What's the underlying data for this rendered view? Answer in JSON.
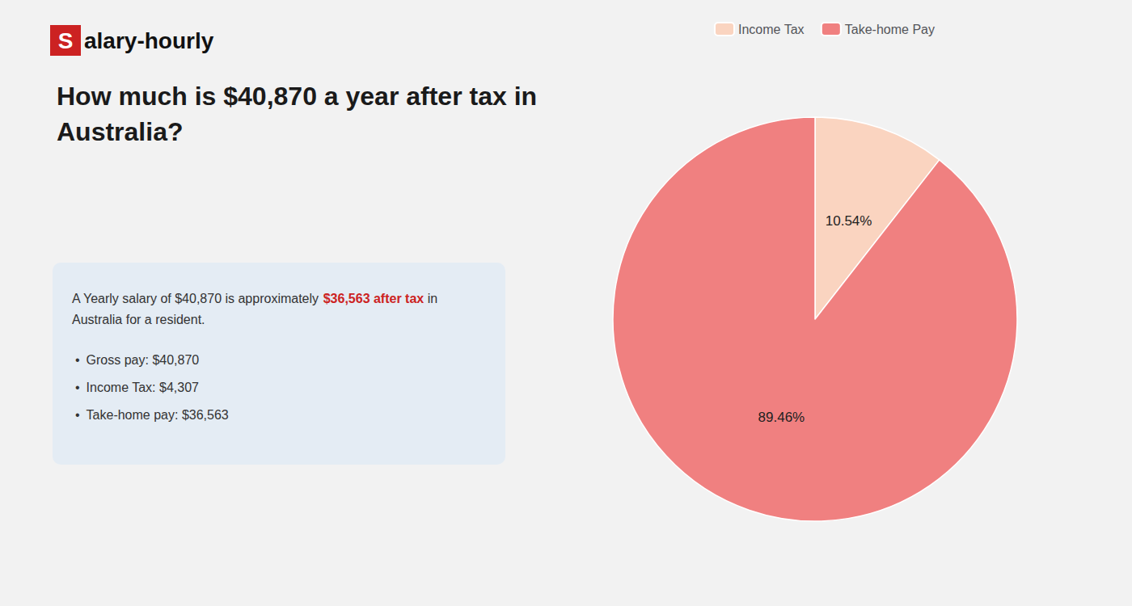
{
  "chart_data": {
    "type": "pie",
    "title": "How much is $40,870 a year after tax in\nAustralia?",
    "categories": [
      "Income Tax",
      "Take-home Pay"
    ],
    "values": [
      10.54,
      89.46
    ],
    "value_labels": [
      "10.54%",
      "89.46%"
    ],
    "colors": [
      "#fad4c0",
      "#f08080"
    ],
    "data_labels": true,
    "legend": "top",
    "annotations": [
      [
        {
          "text": "S",
          "color": "#cc2222"
        },
        {
          "text": "alary-hourly"
        }
      ],
      [
        {
          "text": "A Yearly salary of $40,870 is approximately "
        },
        {
          "text": "$36,563 after tax",
          "color": "#cc2222"
        },
        {
          "text": " in"
        }
      ],
      [
        {
          "text": "Australia for a resident."
        }
      ],
      [
        {
          "text": "•"
        },
        {
          "text": "Gross pay: $40,870"
        }
      ],
      [
        {
          "text": "•"
        },
        {
          "text": "Income Tax: $4,307"
        }
      ],
      [
        {
          "text": "•"
        },
        {
          "text": "Take-home pay: $36,563"
        }
      ]
    ]
  }
}
